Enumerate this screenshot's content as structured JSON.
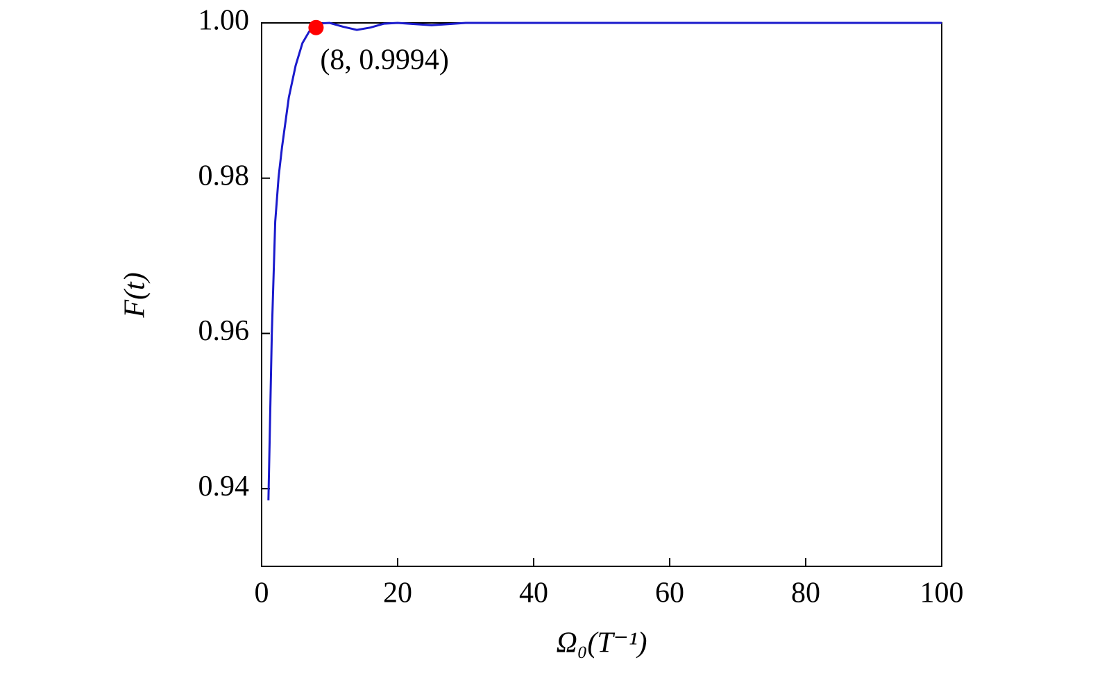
{
  "chart_data": {
    "type": "line",
    "x_label": "Ω₀(T⁻¹)",
    "y_label": "F(t)",
    "xlim": [
      0,
      100
    ],
    "ylim": [
      0.93,
      1.0
    ],
    "xticks": [
      0,
      20,
      40,
      60,
      80,
      100
    ],
    "yticks": [
      0.94,
      0.96,
      0.98,
      {
        "value": 1.0,
        "label": "1.00"
      }
    ],
    "series": [
      {
        "color": "#1a1acc",
        "x": [
          1,
          1.5,
          2,
          2.5,
          3,
          4,
          5,
          6,
          7,
          8,
          9,
          10,
          12,
          14,
          16,
          18,
          20,
          25,
          30,
          40,
          60,
          80,
          100
        ],
        "values": [
          0.9385,
          0.96,
          0.9744,
          0.9802,
          0.984,
          0.9904,
          0.9945,
          0.9974,
          0.9989,
          0.9994,
          0.99995,
          1.0,
          0.9995,
          0.9991,
          0.9994,
          0.9999,
          1.0,
          0.9997,
          1.0,
          1.0,
          1.0,
          1.0,
          1.0
        ]
      }
    ],
    "points": [
      {
        "x": 8,
        "y": 0.9994,
        "label": "(8, 0.9994)",
        "color": "#ff0000"
      }
    ]
  }
}
